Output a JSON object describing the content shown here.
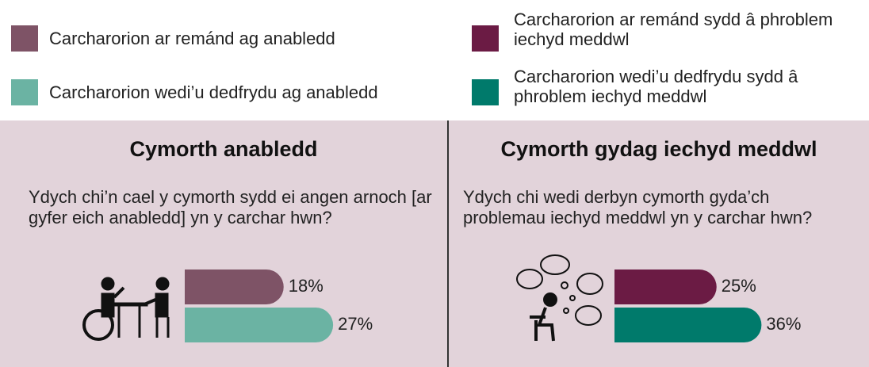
{
  "chart_data": [
    {
      "type": "bar",
      "title": "Cymorth anabledd",
      "subtitle": "Ydych chi’n cael y cymorth sydd ei angen arnoch [ar gyfer eich anabledd] yn y carchar hwn?",
      "series": [
        {
          "name": "Carcharorion ar remánd ag anabledd",
          "color": "#7e5366",
          "values": [
            18
          ],
          "value_labels": [
            "18%"
          ]
        },
        {
          "name": "Carcharorion wedi’u dedfrydu ag anabledd",
          "color": "#6bb3a3",
          "values": [
            27
          ],
          "value_labels": [
            "27%"
          ]
        }
      ]
    },
    {
      "type": "bar",
      "title": "Cymorth gydag iechyd meddwl",
      "subtitle": "Ydych chi wedi derbyn cymorth gyda’ch problemau iechyd meddwl yn y carchar hwn?",
      "series": [
        {
          "name": "Carcharorion ar remánd sydd â phroblem iechyd meddwl",
          "color": "#6b1b44",
          "values": [
            25
          ],
          "value_labels": [
            "25%"
          ]
        },
        {
          "name": "Carcharorion wedi’u dedfrydu sydd â phroblem iechyd meddwl",
          "color": "#007a6b",
          "values": [
            36
          ],
          "value_labels": [
            "36%"
          ]
        }
      ]
    }
  ]
}
